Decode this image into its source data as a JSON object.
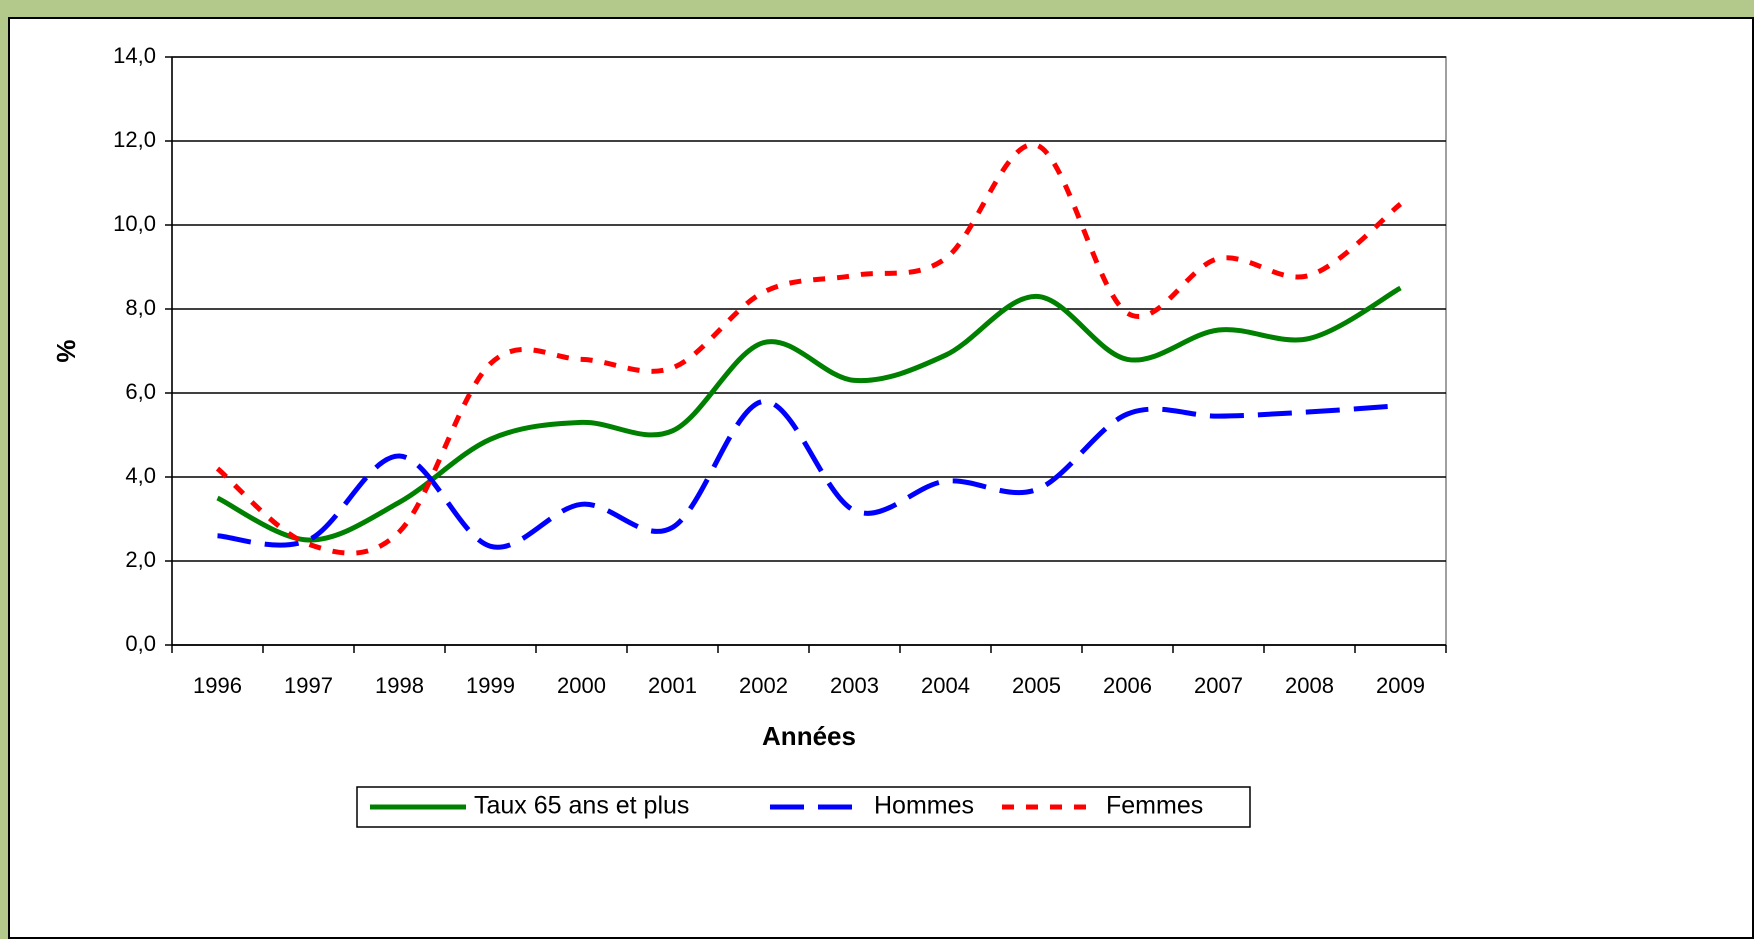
{
  "chart_data": {
    "type": "line",
    "x_label": "Années",
    "y_label": "%",
    "categories": [
      "1996",
      "1997",
      "1998",
      "1999",
      "2000",
      "2001",
      "2002",
      "2003",
      "2004",
      "2005",
      "2006",
      "2007",
      "2008",
      "2009"
    ],
    "series": [
      {
        "name": "Taux 65 ans et plus",
        "color": "#008000",
        "dash": "solid",
        "values": [
          3.5,
          2.5,
          3.4,
          4.9,
          5.3,
          5.1,
          7.2,
          6.3,
          6.9,
          8.3,
          6.8,
          7.5,
          7.3,
          8.5
        ]
      },
      {
        "name": "Hommes",
        "color": "#0000ff",
        "dash": "long",
        "values": [
          2.6,
          2.5,
          4.5,
          2.35,
          3.35,
          2.8,
          5.8,
          3.2,
          3.9,
          3.7,
          5.5,
          5.45,
          5.55,
          5.7
        ]
      },
      {
        "name": "Femmes",
        "color": "#ff0000",
        "dash": "short",
        "values": [
          4.2,
          2.4,
          2.7,
          6.7,
          6.8,
          6.6,
          8.4,
          8.8,
          9.2,
          11.9,
          7.9,
          9.2,
          8.8,
          10.5
        ]
      }
    ],
    "ylim": [
      0,
      14
    ],
    "yticks": [
      {
        "value": 0,
        "label": "0,0"
      },
      {
        "value": 2,
        "label": "2,0"
      },
      {
        "value": 4,
        "label": "4,0"
      },
      {
        "value": 6,
        "label": "6,0"
      },
      {
        "value": 8,
        "label": "8,0"
      },
      {
        "value": 10,
        "label": "10,0"
      },
      {
        "value": 12,
        "label": "12,0"
      },
      {
        "value": 14,
        "label": "14,0"
      }
    ],
    "grid": true,
    "legend": "bottom"
  }
}
